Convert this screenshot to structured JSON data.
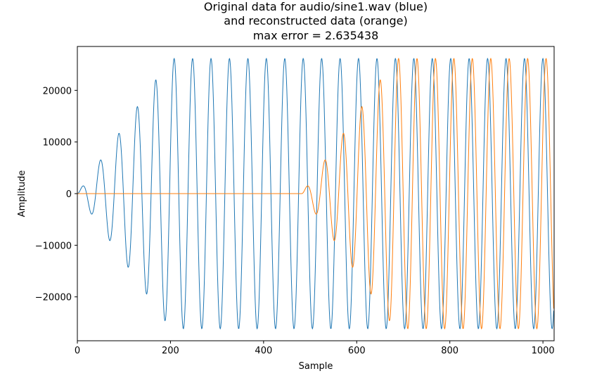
{
  "chart_data": {
    "type": "line",
    "title": [
      "Original data for audio/sine1.wav (blue)",
      "and reconstructed data (orange)",
      "max error = 2.635438"
    ],
    "xlabel": "Sample",
    "ylabel": "Amplitude",
    "xlim": [
      0,
      1024
    ],
    "ylim": [
      -28500,
      28500
    ],
    "xticks": [
      0,
      200,
      400,
      600,
      800,
      1000
    ],
    "yticks": [
      -20000,
      -10000,
      0,
      10000,
      20000
    ],
    "xtick_labels": [
      "0",
      "200",
      "400",
      "600",
      "800",
      "1000"
    ],
    "ytick_labels": [
      "−20000",
      "−10000",
      "0",
      "10000",
      "20000"
    ],
    "series": [
      {
        "name": "original",
        "color": "#1f77b4",
        "function": "windowed_sine",
        "amplitude": 26200,
        "period_samples": 39.6,
        "onset_sample": 0,
        "ramp_samples": 200,
        "length": 1024
      },
      {
        "name": "reconstructed",
        "color": "#ff7f0e",
        "function": "windowed_sine",
        "amplitude": 26200,
        "period_samples": 39.6,
        "onset_sample": 482,
        "ramp_samples": 200,
        "length": 1024
      }
    ]
  }
}
